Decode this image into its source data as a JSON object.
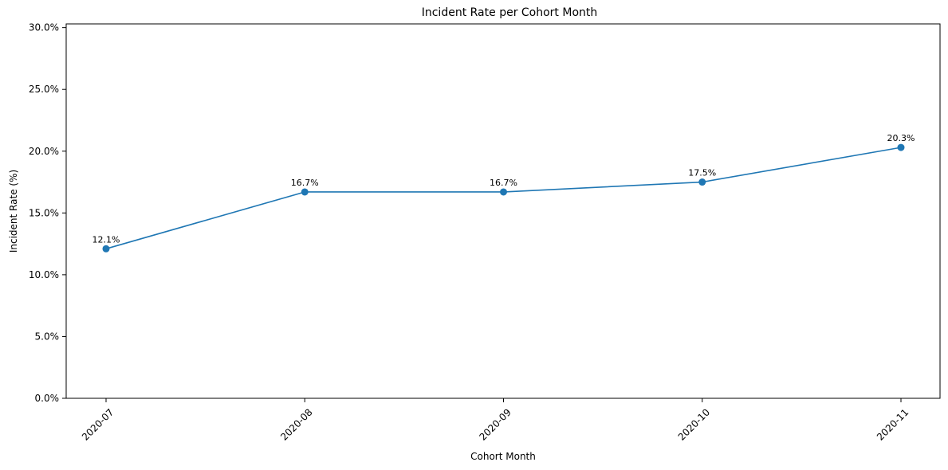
{
  "chart_data": {
    "type": "line",
    "title": "Incident Rate per Cohort Month",
    "xlabel": "Cohort Month",
    "ylabel": "Incident Rate (%)",
    "categories": [
      "2020-07",
      "2020-08",
      "2020-09",
      "2020-10",
      "2020-11"
    ],
    "series": [
      {
        "values": [
          12.1,
          16.7,
          16.7,
          17.5,
          20.3
        ],
        "data_labels": [
          "12.1%",
          "16.7%",
          "16.7%",
          "17.5%",
          "20.3%"
        ]
      }
    ],
    "ylim": [
      0,
      30.3
    ],
    "yticks": [
      0,
      5,
      10,
      15,
      20,
      25,
      30
    ],
    "ytick_labels": [
      "0.0%",
      "5.0%",
      "10.0%",
      "15.0%",
      "20.0%",
      "25.0%",
      "30.0%"
    ],
    "grid": false,
    "line_color": "#1f77b4"
  }
}
